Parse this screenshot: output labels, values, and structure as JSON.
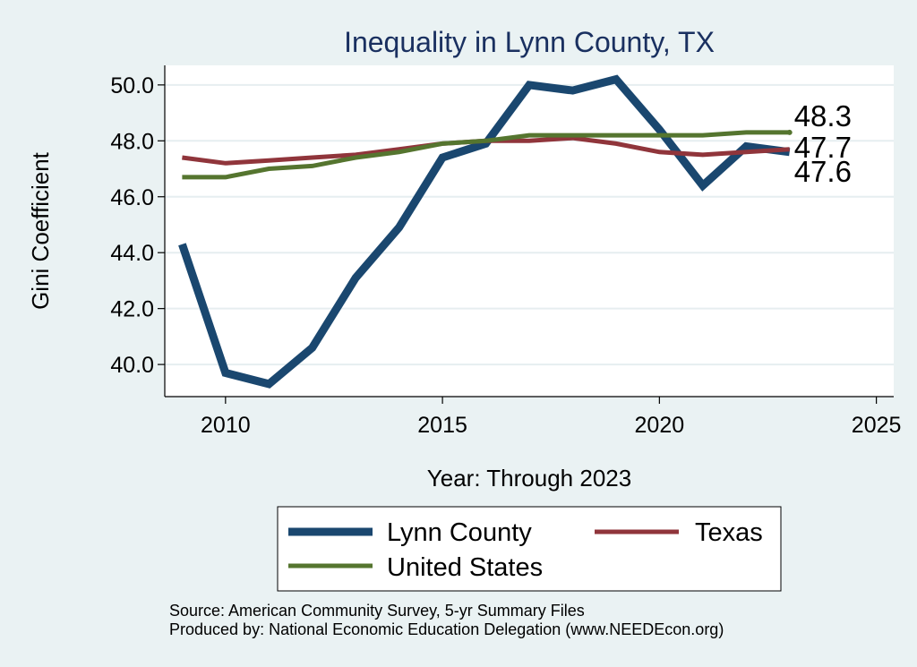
{
  "chart_data": {
    "type": "line",
    "title": "Inequality in Lynn County, TX",
    "xlabel": "Year: Through 2023",
    "ylabel": "Gini Coefficient",
    "xlim": [
      2008.6,
      2025.4
    ],
    "ylim": [
      38.85,
      50.7
    ],
    "x_ticks": [
      2010,
      2015,
      2020,
      2025
    ],
    "x_tick_labels": [
      "2010",
      "2015",
      "2020",
      "2025"
    ],
    "y_ticks": [
      40,
      42,
      44,
      46,
      48,
      50
    ],
    "y_tick_labels": [
      "40.0",
      "42.0",
      "44.0",
      "46.0",
      "48.0",
      "50.0"
    ],
    "grid": true,
    "x": [
      2009,
      2010,
      2011,
      2012,
      2013,
      2014,
      2015,
      2016,
      2017,
      2018,
      2019,
      2020,
      2021,
      2022,
      2023
    ],
    "series": [
      {
        "name": "Lynn County",
        "color": "#1a476f",
        "values": [
          44.3,
          39.7,
          39.3,
          40.6,
          43.1,
          44.9,
          47.4,
          47.9,
          50.0,
          49.8,
          50.2,
          48.4,
          46.4,
          47.8,
          47.6
        ],
        "end_label": "47.6"
      },
      {
        "name": "Texas",
        "color": "#90353b",
        "values": [
          47.4,
          47.2,
          47.3,
          47.4,
          47.5,
          47.7,
          47.9,
          48.0,
          48.0,
          48.1,
          47.9,
          47.6,
          47.5,
          47.6,
          47.7
        ],
        "end_label": "47.7"
      },
      {
        "name": "United States",
        "color": "#55752f",
        "values": [
          46.7,
          46.7,
          47.0,
          47.1,
          47.4,
          47.6,
          47.9,
          48.0,
          48.2,
          48.2,
          48.2,
          48.2,
          48.2,
          48.3,
          48.3
        ],
        "end_label": "48.3"
      }
    ],
    "legend": {
      "placement": "bottom",
      "entries": [
        "Lynn County",
        "Texas",
        "United States"
      ]
    },
    "source_lines": [
      "Source: American Community Survey, 5-yr Summary Files",
      "Produced by: National Economic Education Delegation (www.NEEDEcon.org)"
    ]
  },
  "colors": {
    "outer_background": "#eaf2f3",
    "plot_background": "#ffffff",
    "grid": "#e6eef0",
    "title": "#1a3060"
  }
}
